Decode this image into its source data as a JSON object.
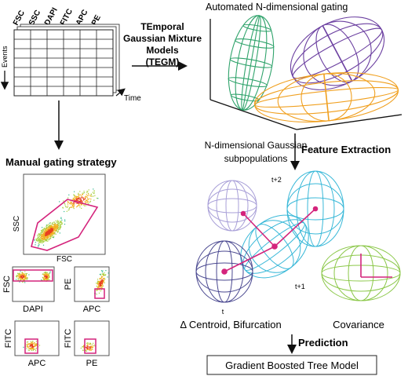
{
  "matrix": {
    "channels": [
      "FSC",
      "SSC",
      "DAPI",
      "FITC",
      "APC",
      "PE"
    ],
    "events_label": "Events",
    "time_label": "Time"
  },
  "tegm_label": [
    "TEmporal",
    "Gaussian Mixture",
    "Models",
    "(TEGM)"
  ],
  "gating_title": "Automated N-dimensional gating",
  "gmm_label": [
    "N-dimensional Gaussian",
    "subpopulations"
  ],
  "feature_extraction": "Feature Extraction",
  "manual_title": "Manual gating strategy",
  "plots": {
    "main": {
      "y": "SSC",
      "x": "FSC"
    },
    "p1": {
      "y": "FSC",
      "x": "DAPI"
    },
    "p2": {
      "y": "PE",
      "x": "APC"
    },
    "p3": {
      "y": "FITC",
      "x": "APC"
    },
    "p4": {
      "y": "FITC",
      "x": "PE"
    }
  },
  "time_points": {
    "t": "t",
    "t1": "t+1",
    "t2": "t+2"
  },
  "centroid_label": "Δ Centroid, Bifurcation",
  "covariance_label": "Covariance",
  "prediction": "Prediction",
  "model_box": "Gradient Boosted Tree Model",
  "colors": {
    "green": "#2fa36b",
    "purple": "#6b3fa0",
    "orange": "#f0a020",
    "gate": "#d4247c",
    "lavender": "#a9a0d8",
    "navy": "#4a4890",
    "cyan": "#38b8d8",
    "lime": "#8cc84a"
  }
}
